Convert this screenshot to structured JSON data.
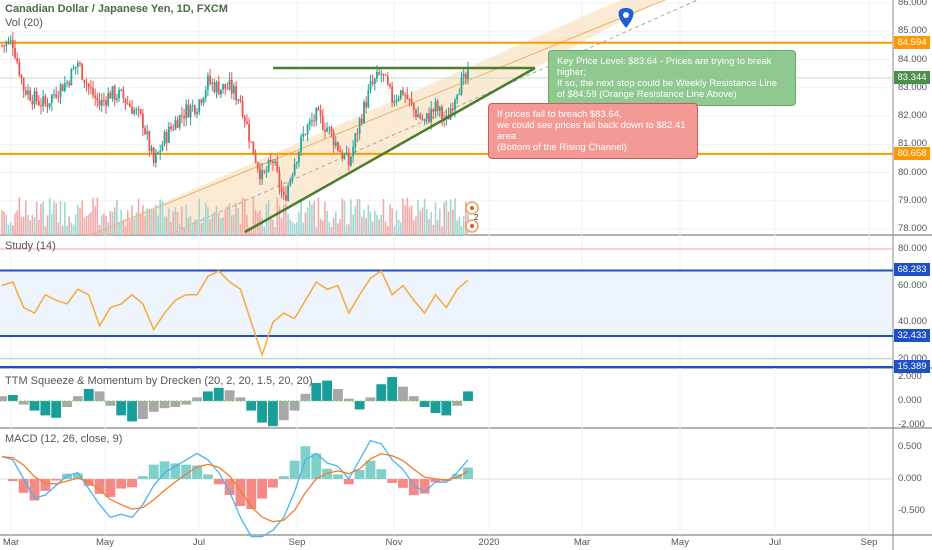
{
  "header": {
    "title": "Canadian Dollar / Japanese Yen, 1D, FXCM",
    "volume_label": "Vol (20)"
  },
  "indicators": {
    "study": "Study (14)",
    "ttm": "TTM Squeeze & Momentum by Drecken (20, 2, 20, 1.5, 20, 20)",
    "macd": "MACD (12, 26, close, 9)"
  },
  "annotations": {
    "green": [
      "Key Price Level: $83.64 - Prices are trying to break higher;",
      "If so, the next stop could be Weekly Resistance Line",
      "of $84.59 (Orange Resistance Line Above)"
    ],
    "red": [
      "If prices fail to breach $83.64,",
      "we could see prices fall back down to $82.41 area",
      "(Bottom of the Rising Channel)"
    ],
    "event_badge": "2"
  },
  "colors": {
    "up": "#26a69a",
    "down": "#ef5350",
    "resistance": "#ff9800",
    "current": "#4c8f4c",
    "rsi": "#f9a93b",
    "band": "#1e4fc6",
    "macd": "#4fb3ea",
    "signal": "#f57c2b",
    "channel": "#fbe3c2"
  },
  "chart_data": [
    {
      "type": "candlestick",
      "name": "CADJPY",
      "interval": "1D",
      "x_unit": "week index from late Feb 2019",
      "weekly_close": [
        84.5,
        84.6,
        83.0,
        82.6,
        82.4,
        82.9,
        83.2,
        83.9,
        83.0,
        82.4,
        82.8,
        82.7,
        82.3,
        81.8,
        80.3,
        81.2,
        81.8,
        82.2,
        82.4,
        83.2,
        83.0,
        83.0,
        82.6,
        81.0,
        79.8,
        80.4,
        79.0,
        80.4,
        81.5,
        82.0,
        81.6,
        80.9,
        80.3,
        81.8,
        83.0,
        83.5,
        82.6,
        82.9,
        82.2,
        81.8,
        82.3,
        81.8,
        83.0,
        83.34
      ],
      "ylim": [
        78,
        86
      ],
      "y_ticks": [
        "86.000",
        "85.000",
        "84.000",
        "83.000",
        "82.000",
        "81.000",
        "80.000",
        "79.000",
        "78.000"
      ],
      "levels": [
        {
          "value": "84.594",
          "kind": "resistance"
        },
        {
          "value": "83.344",
          "kind": "current"
        },
        {
          "value": "80.658",
          "kind": "support"
        }
      ],
      "key_level": 83.64
    },
    {
      "type": "line",
      "name": "Study (14)",
      "ylim": [
        15,
        85
      ],
      "values": [
        60,
        62,
        48,
        45,
        55,
        52,
        50,
        58,
        55,
        38,
        48,
        50,
        55,
        50,
        36,
        45,
        52,
        55,
        55,
        65,
        68,
        62,
        58,
        40,
        22,
        40,
        45,
        42,
        52,
        62,
        58,
        60,
        45,
        55,
        64,
        68,
        55,
        60,
        52,
        45,
        55,
        48,
        58,
        63
      ],
      "y_ticks": [
        "80.000",
        "60.000",
        "40.000",
        "20.000"
      ],
      "levels": [
        {
          "value": "68.283"
        },
        {
          "value": "32.433"
        },
        {
          "value": "15.389"
        }
      ]
    },
    {
      "type": "bar",
      "name": "TTM Squeeze",
      "ylim": [
        -2,
        2
      ],
      "values": [
        0.4,
        0.5,
        -0.3,
        -0.8,
        -1.2,
        -1.4,
        -0.5,
        0.4,
        1.0,
        0.8,
        -0.4,
        -1.2,
        -1.7,
        -1.5,
        -0.9,
        -0.6,
        -0.5,
        -0.3,
        0.3,
        0.8,
        1.1,
        0.9,
        0.3,
        -0.8,
        -1.8,
        -2.1,
        -1.6,
        -0.8,
        0.6,
        1.5,
        1.7,
        1.0,
        0.2,
        -0.7,
        0.3,
        1.4,
        2.0,
        1.2,
        0.4,
        -0.5,
        -1.0,
        -1.2,
        -0.4,
        0.8
      ],
      "y_ticks": [
        "2.000",
        "0.000",
        "-2.000"
      ]
    },
    {
      "type": "line",
      "name": "MACD",
      "ylim": [
        -0.75,
        0.75
      ],
      "macd": [
        0.35,
        0.3,
        0.0,
        -0.3,
        -0.25,
        -0.1,
        0.05,
        0.1,
        -0.15,
        -0.4,
        -0.6,
        -0.55,
        -0.6,
        -0.4,
        -0.1,
        0.1,
        0.2,
        0.3,
        0.4,
        0.3,
        0.1,
        -0.2,
        -0.6,
        -0.9,
        -0.9,
        -0.8,
        -0.6,
        -0.2,
        0.3,
        0.4,
        0.25,
        0.2,
        0.0,
        0.3,
        0.6,
        0.55,
        0.3,
        0.15,
        -0.1,
        -0.2,
        -0.05,
        -0.05,
        0.1,
        0.3
      ],
      "y_ticks": [
        "0.500",
        "0.000",
        "-0.500"
      ]
    }
  ],
  "x_axis": [
    "Mar",
    "May",
    "Jul",
    "Sep",
    "Nov",
    "2020",
    "Mar",
    "May",
    "Jul",
    "Sep"
  ]
}
